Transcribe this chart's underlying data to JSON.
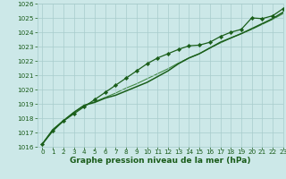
{
  "x": [
    0,
    1,
    2,
    3,
    4,
    5,
    6,
    7,
    8,
    9,
    10,
    11,
    12,
    13,
    14,
    15,
    16,
    17,
    18,
    19,
    20,
    21,
    22,
    23
  ],
  "line1_marked": [
    1016.2,
    1017.1,
    1017.8,
    1018.3,
    1018.8,
    1019.3,
    1019.8,
    1020.3,
    1020.8,
    1021.3,
    1021.8,
    1022.2,
    1022.5,
    1022.8,
    1023.05,
    1023.1,
    1023.3,
    1023.7,
    1024.0,
    1024.2,
    1025.0,
    1024.95,
    1025.15,
    1025.65
  ],
  "line2_plain": [
    1016.2,
    1017.2,
    1017.8,
    1018.4,
    1018.9,
    1019.1,
    1019.4,
    1019.6,
    1019.9,
    1020.2,
    1020.5,
    1020.9,
    1021.3,
    1021.8,
    1022.2,
    1022.5,
    1022.9,
    1023.3,
    1023.6,
    1023.9,
    1024.25,
    1024.6,
    1024.95,
    1025.4
  ],
  "line3_smooth": [
    1016.2,
    1017.2,
    1017.85,
    1018.4,
    1018.9,
    1019.15,
    1019.45,
    1019.75,
    1020.1,
    1020.4,
    1020.75,
    1021.1,
    1021.45,
    1021.85,
    1022.2,
    1022.5,
    1022.9,
    1023.25,
    1023.6,
    1023.9,
    1024.2,
    1024.55,
    1024.9,
    1025.3
  ],
  "title": "Graphe pression niveau de la mer (hPa)",
  "ylim": [
    1016,
    1026
  ],
  "xlim": [
    -0.5,
    23
  ],
  "yticks": [
    1016,
    1017,
    1018,
    1019,
    1020,
    1021,
    1022,
    1023,
    1024,
    1025,
    1026
  ],
  "xticks": [
    0,
    1,
    2,
    3,
    4,
    5,
    6,
    7,
    8,
    9,
    10,
    11,
    12,
    13,
    14,
    15,
    16,
    17,
    18,
    19,
    20,
    21,
    22,
    23
  ],
  "color_dark": "#1a5e1a",
  "color_mid": "#2a7a2a",
  "bg_color": "#cce8e8",
  "grid_color": "#a8cccc",
  "title_color": "#1a5c1a",
  "tick_fontsize": 5.2,
  "xlabel_fontsize": 6.5
}
